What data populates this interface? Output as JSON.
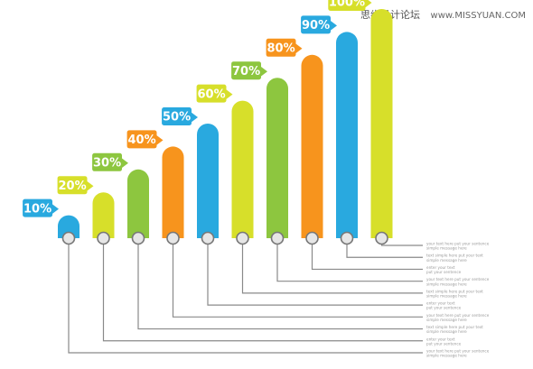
{
  "watermark": {
    "cn_text": "思缘设计论坛",
    "site": "www.MISSYUAN.COM"
  },
  "colors": {
    "blue": "#29a9df",
    "lime": "#d7df2a",
    "green": "#8dc63f",
    "orange": "#f7941d",
    "line": "#8a8a8a",
    "circle_stroke": "#777777",
    "circle_fill": "#e6e6e6",
    "text_gray": "#9a9a9a"
  },
  "chart_data": {
    "type": "bar",
    "categories": [
      "10%",
      "20%",
      "30%",
      "40%",
      "50%",
      "60%",
      "70%",
      "80%",
      "90%",
      "100%"
    ],
    "values": [
      10,
      20,
      30,
      40,
      50,
      60,
      70,
      80,
      90,
      100
    ],
    "ylim": [
      0,
      100
    ],
    "bar_colors": [
      "blue",
      "lime",
      "green",
      "orange",
      "blue",
      "lime",
      "green",
      "orange",
      "blue",
      "lime"
    ],
    "notes": [
      [
        "your text here put your sentence",
        "simple message here"
      ],
      [
        "enter your text",
        "put your sentence"
      ],
      [
        "text simple here put your text",
        "simple message here"
      ],
      [
        "your text here put your sentence",
        "simple message here"
      ],
      [
        "enter your text",
        "put your sentence"
      ],
      [
        "text simple here put your text",
        "simple message here"
      ],
      [
        "your text here put your sentence",
        "simple message here"
      ],
      [
        "enter your text",
        "put your sentence"
      ],
      [
        "text simple here put your text",
        "simple message here"
      ],
      [
        "your text here put your sentence",
        "simple message here"
      ]
    ]
  }
}
